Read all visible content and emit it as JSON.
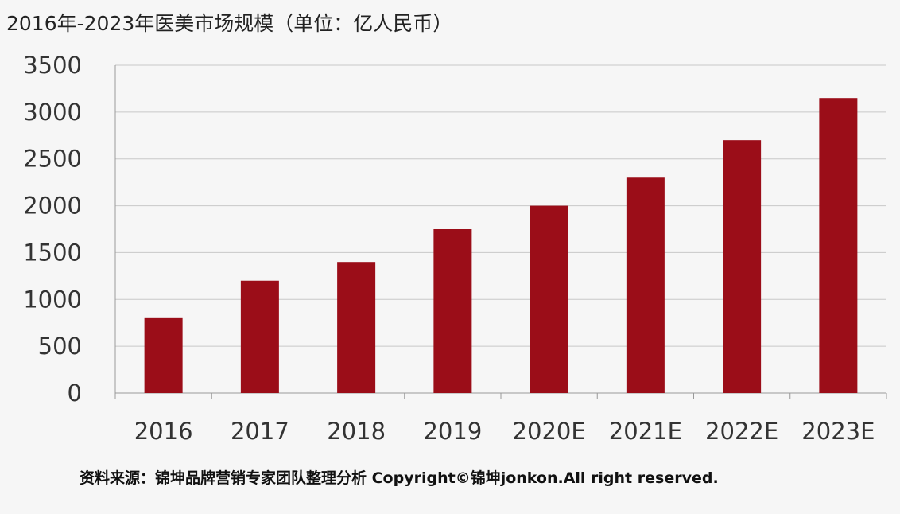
{
  "chart_data": {
    "type": "bar",
    "title": "2016年-2023年医美市场规模（单位：亿人民币）",
    "categories": [
      "2016",
      "2017",
      "2018",
      "2019",
      "2020E",
      "2021E",
      "2022E",
      "2023E"
    ],
    "values": [
      800,
      1200,
      1400,
      1750,
      2000,
      2300,
      2700,
      3150
    ],
    "ylim": [
      0,
      3500
    ],
    "yticks": [
      0,
      500,
      1000,
      1500,
      2000,
      2500,
      3000,
      3500
    ],
    "xlabel": "",
    "ylabel": "",
    "grid": true,
    "bar_color": "#9b0d18",
    "source": "资料来源：锦坤品牌营销专家团队整理分析  Copyright©锦坤jonkon.All right reserved."
  }
}
